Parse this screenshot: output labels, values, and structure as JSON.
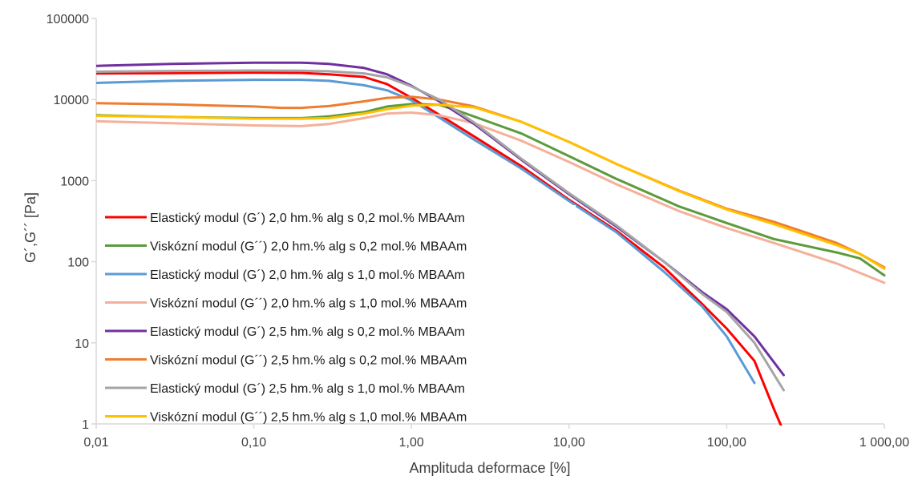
{
  "chart_data": {
    "type": "line",
    "title": "",
    "xlabel": "Amplituda deformace [%]",
    "ylabel": "G´,G´´ [Pa]",
    "xscale": "log",
    "yscale": "log",
    "xlim": [
      0.01,
      1000
    ],
    "ylim": [
      1,
      100000
    ],
    "x_tick_labels": [
      "0,01",
      "0,10",
      "1,00",
      "10,00",
      "100,00",
      "1 000,00"
    ],
    "y_tick_labels": [
      "1",
      "10",
      "100",
      "1000",
      "10000",
      "100000"
    ],
    "grid": false,
    "legend_position": "lower-left inside",
    "series": [
      {
        "name": "Elastický modul (G´) 2,0 hm.% alg s 0,2 mol.% MBAAm",
        "color": "#ff0000",
        "points": [
          [
            0.01,
            21000
          ],
          [
            0.03,
            21200
          ],
          [
            0.1,
            21500
          ],
          [
            0.2,
            21300
          ],
          [
            0.3,
            20500
          ],
          [
            0.5,
            19000
          ],
          [
            0.7,
            15500
          ],
          [
            1.0,
            10500
          ],
          [
            1.5,
            6500
          ],
          [
            2.5,
            3500
          ],
          [
            5,
            1500
          ],
          [
            10,
            580
          ],
          [
            20,
            240
          ],
          [
            40,
            85
          ],
          [
            70,
            30
          ],
          [
            100,
            15
          ],
          [
            150,
            6
          ],
          [
            200,
            1.5
          ],
          [
            230,
            0.8
          ]
        ]
      },
      {
        "name": "Viskózní modul (G´´) 2,0 hm.% alg s 0,2 mol.% MBAAm",
        "color": "#5b9b3c",
        "points": [
          [
            0.01,
            6400
          ],
          [
            0.03,
            6100
          ],
          [
            0.1,
            5900
          ],
          [
            0.2,
            5900
          ],
          [
            0.3,
            6200
          ],
          [
            0.5,
            7000
          ],
          [
            0.7,
            8200
          ],
          [
            1.0,
            8800
          ],
          [
            1.5,
            8600
          ],
          [
            2,
            7200
          ],
          [
            5,
            3800
          ],
          [
            10,
            2000
          ],
          [
            20,
            1050
          ],
          [
            50,
            480
          ],
          [
            100,
            300
          ],
          [
            200,
            190
          ],
          [
            500,
            130
          ],
          [
            700,
            110
          ],
          [
            1000,
            68
          ]
        ]
      },
      {
        "name": "Elastický modul (G´) 2,0 hm.% alg s 1,0 mol.% MBAAm",
        "color": "#5b9bd5",
        "points": [
          [
            0.01,
            16000
          ],
          [
            0.03,
            17000
          ],
          [
            0.1,
            17500
          ],
          [
            0.2,
            17500
          ],
          [
            0.3,
            17000
          ],
          [
            0.5,
            15000
          ],
          [
            0.7,
            13000
          ],
          [
            1.0,
            9800
          ],
          [
            1.5,
            6000
          ],
          [
            2.5,
            3200
          ],
          [
            5,
            1400
          ],
          [
            10,
            560
          ],
          [
            20,
            230
          ],
          [
            40,
            75
          ],
          [
            70,
            28
          ],
          [
            100,
            12
          ],
          [
            150,
            3.2
          ]
        ]
      },
      {
        "name": "Viskózní modul (G´´) 2,0 hm.% alg s 1,0 mol.% MBAAm",
        "color": "#f4b09a",
        "points": [
          [
            0.01,
            5400
          ],
          [
            0.03,
            5100
          ],
          [
            0.1,
            4800
          ],
          [
            0.2,
            4700
          ],
          [
            0.3,
            5000
          ],
          [
            0.5,
            5900
          ],
          [
            0.7,
            6700
          ],
          [
            1.0,
            6900
          ],
          [
            1.5,
            6400
          ],
          [
            2.5,
            5100
          ],
          [
            5,
            3100
          ],
          [
            10,
            1700
          ],
          [
            20,
            900
          ],
          [
            50,
            420
          ],
          [
            100,
            260
          ],
          [
            200,
            170
          ],
          [
            500,
            95
          ],
          [
            1000,
            55
          ]
        ]
      },
      {
        "name": "Elastický modul (G´) 2,5 hm.% alg s 0,2 mol.% MBAAm",
        "color": "#7030a0",
        "points": [
          [
            0.01,
            26000
          ],
          [
            0.03,
            27500
          ],
          [
            0.1,
            28500
          ],
          [
            0.2,
            28500
          ],
          [
            0.3,
            27500
          ],
          [
            0.5,
            24500
          ],
          [
            0.7,
            20500
          ],
          [
            1.0,
            14800
          ],
          [
            1.5,
            9500
          ],
          [
            2.5,
            5000
          ],
          [
            5,
            1800
          ],
          [
            10,
            680
          ],
          [
            20,
            270
          ],
          [
            40,
            100
          ],
          [
            70,
            42
          ],
          [
            100,
            26
          ],
          [
            150,
            12
          ],
          [
            230,
            4
          ]
        ]
      },
      {
        "name": "Viskózní modul (G´´) 2,5 hm.% alg s 0,2 mol.% MBAAm",
        "color": "#ed7d31",
        "points": [
          [
            0.01,
            9000
          ],
          [
            0.03,
            8700
          ],
          [
            0.1,
            8200
          ],
          [
            0.15,
            7900
          ],
          [
            0.2,
            7900
          ],
          [
            0.3,
            8300
          ],
          [
            0.5,
            9500
          ],
          [
            0.7,
            10500
          ],
          [
            1.0,
            10800
          ],
          [
            1.5,
            10000
          ],
          [
            2.5,
            8200
          ],
          [
            5,
            5300
          ],
          [
            10,
            3000
          ],
          [
            20,
            1600
          ],
          [
            50,
            750
          ],
          [
            100,
            450
          ],
          [
            200,
            310
          ],
          [
            500,
            170
          ],
          [
            700,
            125
          ],
          [
            1000,
            85
          ]
        ]
      },
      {
        "name": "Elastický modul (G´) 2,5 hm.% alg s 1,0 mol.% MBAAm",
        "color": "#a5a5a5",
        "points": [
          [
            0.01,
            22000
          ],
          [
            0.03,
            22500
          ],
          [
            0.1,
            22800
          ],
          [
            0.2,
            22700
          ],
          [
            0.3,
            22300
          ],
          [
            0.5,
            21000
          ],
          [
            0.7,
            18800
          ],
          [
            1.0,
            14500
          ],
          [
            1.5,
            10000
          ],
          [
            2.5,
            5200
          ],
          [
            5,
            1850
          ],
          [
            10,
            700
          ],
          [
            20,
            280
          ],
          [
            40,
            100
          ],
          [
            70,
            40
          ],
          [
            100,
            24
          ],
          [
            150,
            10
          ],
          [
            230,
            2.6
          ]
        ]
      },
      {
        "name": "Viskózní modul (G´´) 2,5 hm.% alg s 1,0 mol.% MBAAm",
        "color": "#ffc000",
        "points": [
          [
            0.01,
            6300
          ],
          [
            0.03,
            6100
          ],
          [
            0.1,
            5800
          ],
          [
            0.2,
            5800
          ],
          [
            0.3,
            5900
          ],
          [
            0.5,
            6700
          ],
          [
            0.7,
            7600
          ],
          [
            1.0,
            8400
          ],
          [
            1.5,
            8600
          ],
          [
            2.5,
            8000
          ],
          [
            5,
            5300
          ],
          [
            10,
            3000
          ],
          [
            20,
            1600
          ],
          [
            50,
            740
          ],
          [
            100,
            440
          ],
          [
            200,
            290
          ],
          [
            500,
            160
          ],
          [
            700,
            125
          ],
          [
            1000,
            82
          ]
        ]
      }
    ]
  }
}
